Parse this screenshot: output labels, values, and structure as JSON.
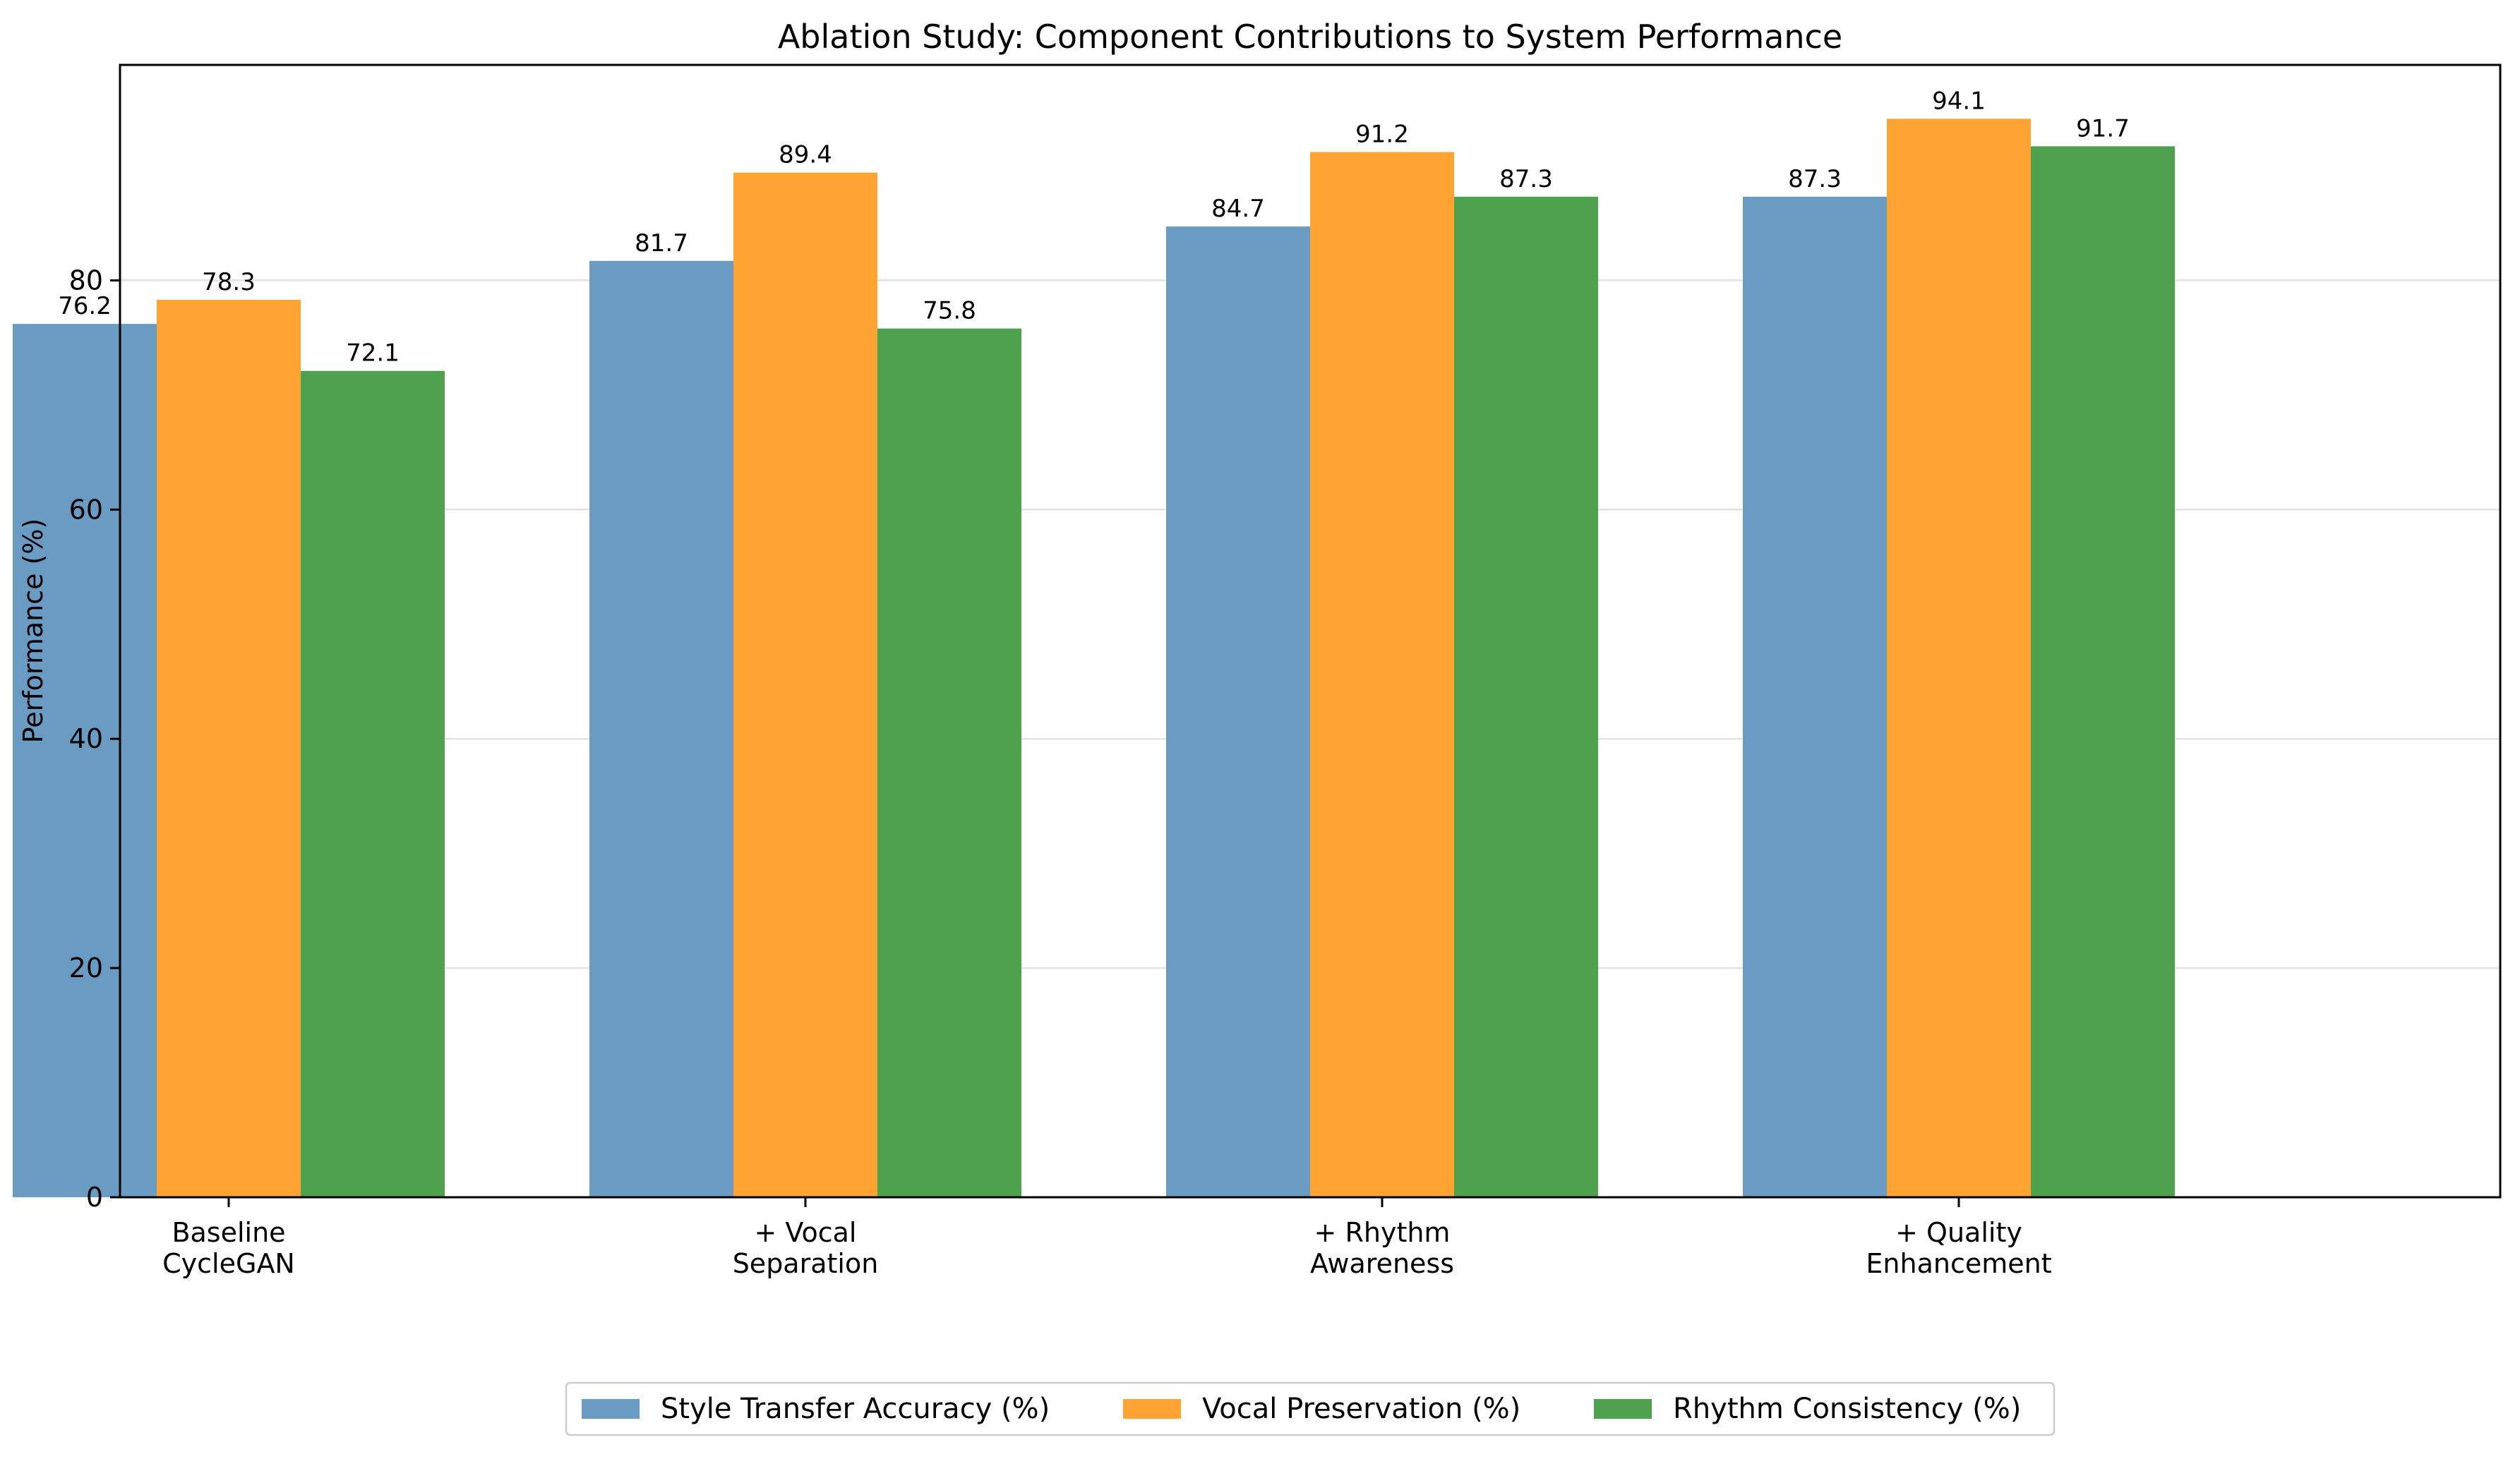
{
  "chart_data": {
    "type": "bar",
    "title": "Ablation Study: Component Contributions to System Performance",
    "xlabel": "",
    "ylabel": "Performance (%)",
    "ylim": [
      0,
      98.8
    ],
    "yticks": [
      0,
      20,
      40,
      60,
      80
    ],
    "grid": "y-axis, light",
    "legend_position": "bottom-center",
    "categories": [
      [
        "Baseline",
        "CycleGAN"
      ],
      [
        "+ Vocal",
        "Separation"
      ],
      [
        "+ Rhythm",
        "Awareness"
      ],
      [
        "+ Quality",
        "Enhancement"
      ]
    ],
    "series": [
      {
        "name": "Style Transfer Accuracy (%)",
        "color": "#6a9bc3",
        "values": [
          76.2,
          81.7,
          84.7,
          87.3
        ]
      },
      {
        "name": "Vocal Preservation (%)",
        "color": "#ffa333",
        "values": [
          78.3,
          89.4,
          91.2,
          94.1
        ]
      },
      {
        "name": "Rhythm Consistency (%)",
        "color": "#4ea24e",
        "values": [
          72.1,
          75.8,
          87.3,
          91.7
        ]
      }
    ]
  }
}
